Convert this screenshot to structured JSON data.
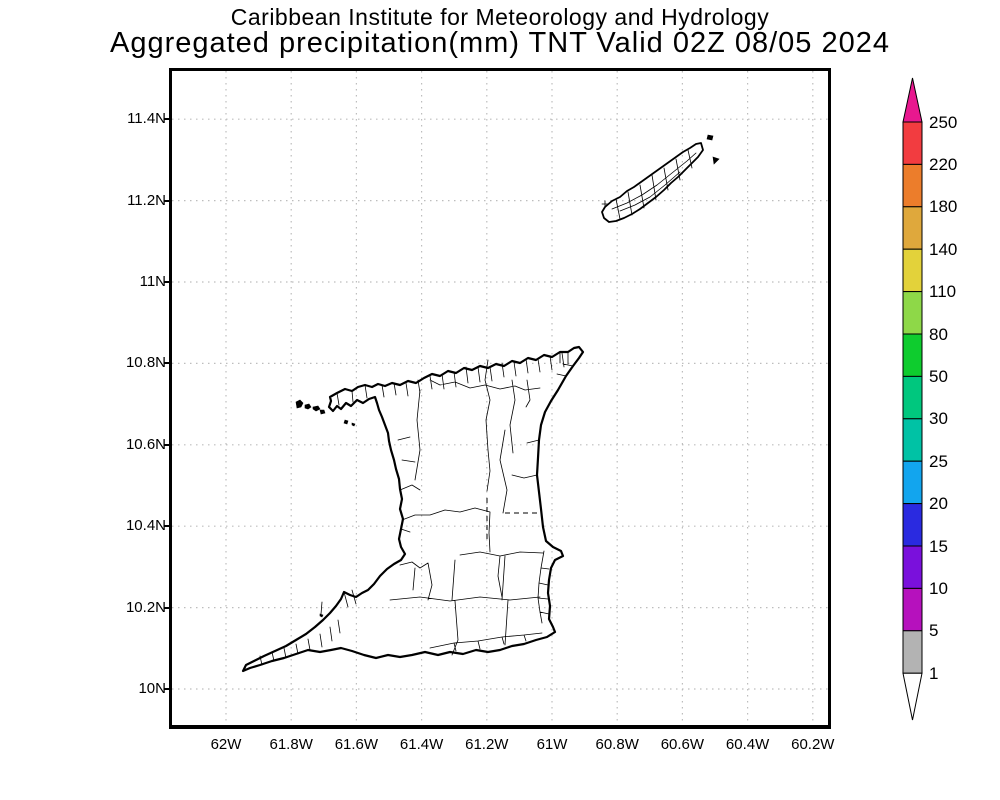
{
  "header": {
    "line1": "Caribbean Institute for Meteorology and Hydrology",
    "line2": "Aggregated precipitation(mm) TNT Valid 02Z 08/05 2024"
  },
  "axes": {
    "lat_ticks": [
      {
        "label": "11.4N",
        "deg": 11.4
      },
      {
        "label": "11.2N",
        "deg": 11.2
      },
      {
        "label": "11N",
        "deg": 11.0
      },
      {
        "label": "10.8N",
        "deg": 10.8
      },
      {
        "label": "10.6N",
        "deg": 10.6
      },
      {
        "label": "10.4N",
        "deg": 10.4
      },
      {
        "label": "10.2N",
        "deg": 10.2
      },
      {
        "label": "10N",
        "deg": 10.0
      }
    ],
    "lon_ticks": [
      {
        "label": "62W",
        "deg": 62.0
      },
      {
        "label": "61.8W",
        "deg": 61.8
      },
      {
        "label": "61.6W",
        "deg": 61.6
      },
      {
        "label": "61.4W",
        "deg": 61.4
      },
      {
        "label": "61.2W",
        "deg": 61.2
      },
      {
        "label": "61W",
        "deg": 61.0
      },
      {
        "label": "60.8W",
        "deg": 60.8
      },
      {
        "label": "60.6W",
        "deg": 60.6
      },
      {
        "label": "60.4W",
        "deg": 60.4
      },
      {
        "label": "60.2W",
        "deg": 60.2
      }
    ]
  },
  "colorbar": {
    "tick_labels": [
      "250",
      "220",
      "180",
      "140",
      "110",
      "80",
      "50",
      "30",
      "25",
      "20",
      "15",
      "10",
      "5",
      "1"
    ],
    "band_colors_top_to_bottom": [
      "#f23c40",
      "#ec7d2b",
      "#dfa83c",
      "#e3d23a",
      "#8ed848",
      "#0ecc2e",
      "#00c77e",
      "#00c2a5",
      "#12a5ee",
      "#2a2ae0",
      "#7a10dc",
      "#b611bd",
      "#b3b3b3"
    ],
    "over_arrow_color": "#e8188f",
    "under_arrow_color": "#ffffff"
  },
  "chart_data": {
    "type": "map",
    "title": "Aggregated precipitation(mm) TNT Valid 02Z 08/05 2024",
    "institution": "Caribbean Institute for Meteorology and Hydrology",
    "region": "Trinidad and Tobago (TNT)",
    "units": "mm",
    "valid_time": "02Z 08/05 2024",
    "lon_axis_labels": [
      "62W",
      "61.8W",
      "61.6W",
      "61.4W",
      "61.2W",
      "61W",
      "60.8W",
      "60.6W",
      "60.4W",
      "60.2W"
    ],
    "lat_axis_labels": [
      "11.4N",
      "11.2N",
      "11N",
      "10.8N",
      "10.6N",
      "10.4N",
      "10.2N",
      "10N"
    ],
    "grid": "dotted gray graticule every 0.2 degrees",
    "colorbar_levels_mm": [
      1,
      5,
      10,
      15,
      20,
      25,
      30,
      50,
      80,
      110,
      140,
      180,
      220,
      250
    ],
    "shaded_regions": [],
    "notes": "Map shows Trinidad and Tobago coastlines with administrative (ward/parish) boundaries; no precipitation shading visible (all values below 1 mm)."
  }
}
